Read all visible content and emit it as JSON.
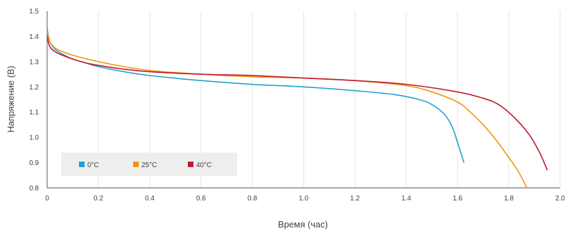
{
  "chart_data": {
    "type": "line",
    "title": "",
    "xlabel": "Время (час)",
    "ylabel": "Напряжение (В)",
    "xlim": [
      0,
      2.0
    ],
    "ylim": [
      0.8,
      1.5
    ],
    "xticks": [
      0,
      0.2,
      0.4,
      0.6,
      0.8,
      1.0,
      1.2,
      1.4,
      1.6,
      1.8,
      2.0
    ],
    "xtick_labels": [
      "0",
      "0.2",
      "0.4",
      "0.6",
      "0.8",
      "1.0",
      "1.2",
      "1.4",
      "1.6",
      "1.8",
      "2.0"
    ],
    "yticks": [
      0.8,
      0.9,
      1.0,
      1.1,
      1.2,
      1.3,
      1.4,
      1.5
    ],
    "ytick_labels": [
      "0.8",
      "0.9",
      "1.0",
      "1.1",
      "1.2",
      "1.3",
      "1.4",
      "1.5"
    ],
    "grid": "vertical",
    "legend_position": "bottom-left inside",
    "series": [
      {
        "name": "0°C",
        "color": "#1fa1c9",
        "points": [
          [
            0,
            1.43
          ],
          [
            0.01,
            1.38
          ],
          [
            0.03,
            1.35
          ],
          [
            0.06,
            1.33
          ],
          [
            0.1,
            1.31
          ],
          [
            0.15,
            1.295
          ],
          [
            0.2,
            1.28
          ],
          [
            0.3,
            1.26
          ],
          [
            0.4,
            1.245
          ],
          [
            0.6,
            1.225
          ],
          [
            0.8,
            1.21
          ],
          [
            1.0,
            1.2
          ],
          [
            1.2,
            1.185
          ],
          [
            1.35,
            1.17
          ],
          [
            1.45,
            1.15
          ],
          [
            1.5,
            1.13
          ],
          [
            1.55,
            1.09
          ],
          [
            1.58,
            1.04
          ],
          [
            1.6,
            0.98
          ],
          [
            1.625,
            0.9
          ]
        ]
      },
      {
        "name": "25°C",
        "color": "#f3920d",
        "points": [
          [
            0,
            1.42
          ],
          [
            0.01,
            1.38
          ],
          [
            0.03,
            1.355
          ],
          [
            0.06,
            1.34
          ],
          [
            0.1,
            1.325
          ],
          [
            0.2,
            1.3
          ],
          [
            0.3,
            1.28
          ],
          [
            0.4,
            1.265
          ],
          [
            0.6,
            1.25
          ],
          [
            0.8,
            1.24
          ],
          [
            1.0,
            1.235
          ],
          [
            1.2,
            1.225
          ],
          [
            1.4,
            1.205
          ],
          [
            1.5,
            1.18
          ],
          [
            1.6,
            1.14
          ],
          [
            1.65,
            1.1
          ],
          [
            1.7,
            1.05
          ],
          [
            1.75,
            0.99
          ],
          [
            1.8,
            0.92
          ],
          [
            1.84,
            0.86
          ],
          [
            1.87,
            0.8
          ]
        ]
      },
      {
        "name": "40°C",
        "color": "#c1192f",
        "points": [
          [
            0,
            1.4
          ],
          [
            0.01,
            1.36
          ],
          [
            0.03,
            1.34
          ],
          [
            0.06,
            1.325
          ],
          [
            0.1,
            1.31
          ],
          [
            0.15,
            1.295
          ],
          [
            0.2,
            1.285
          ],
          [
            0.3,
            1.27
          ],
          [
            0.4,
            1.26
          ],
          [
            0.6,
            1.25
          ],
          [
            0.8,
            1.245
          ],
          [
            1.0,
            1.235
          ],
          [
            1.2,
            1.225
          ],
          [
            1.4,
            1.21
          ],
          [
            1.6,
            1.18
          ],
          [
            1.7,
            1.155
          ],
          [
            1.76,
            1.13
          ],
          [
            1.82,
            1.08
          ],
          [
            1.88,
            1.01
          ],
          [
            1.92,
            0.94
          ],
          [
            1.95,
            0.87
          ]
        ]
      }
    ]
  }
}
